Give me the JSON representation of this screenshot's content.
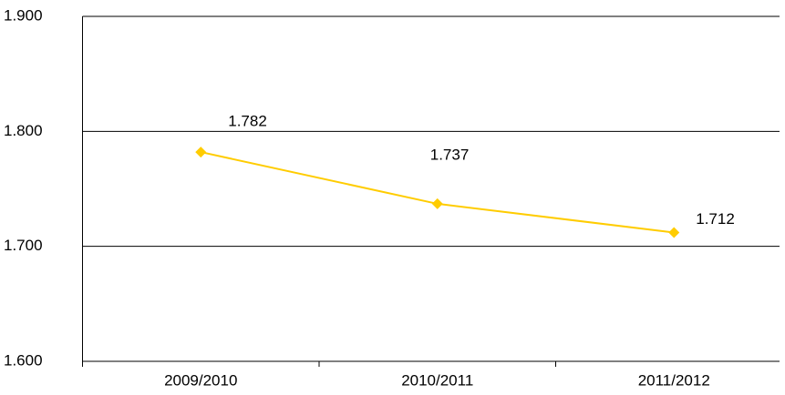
{
  "chart_data": {
    "type": "line",
    "categories": [
      "2009/2010",
      "2010/2011",
      "2011/2012"
    ],
    "series": [
      {
        "color": "#ffcc00",
        "values": [
          1.782,
          1.737,
          1.712
        ],
        "value_labels": [
          "1.782",
          "1.737",
          "1.712"
        ]
      }
    ],
    "ylim": [
      1.6,
      1.9
    ],
    "yticks": [
      {
        "value": 1.6,
        "label": "1.600"
      },
      {
        "value": 1.7,
        "label": "1.700"
      },
      {
        "value": 1.8,
        "label": "1.800"
      },
      {
        "value": 1.9,
        "label": "1.900"
      }
    ],
    "grid": true
  }
}
